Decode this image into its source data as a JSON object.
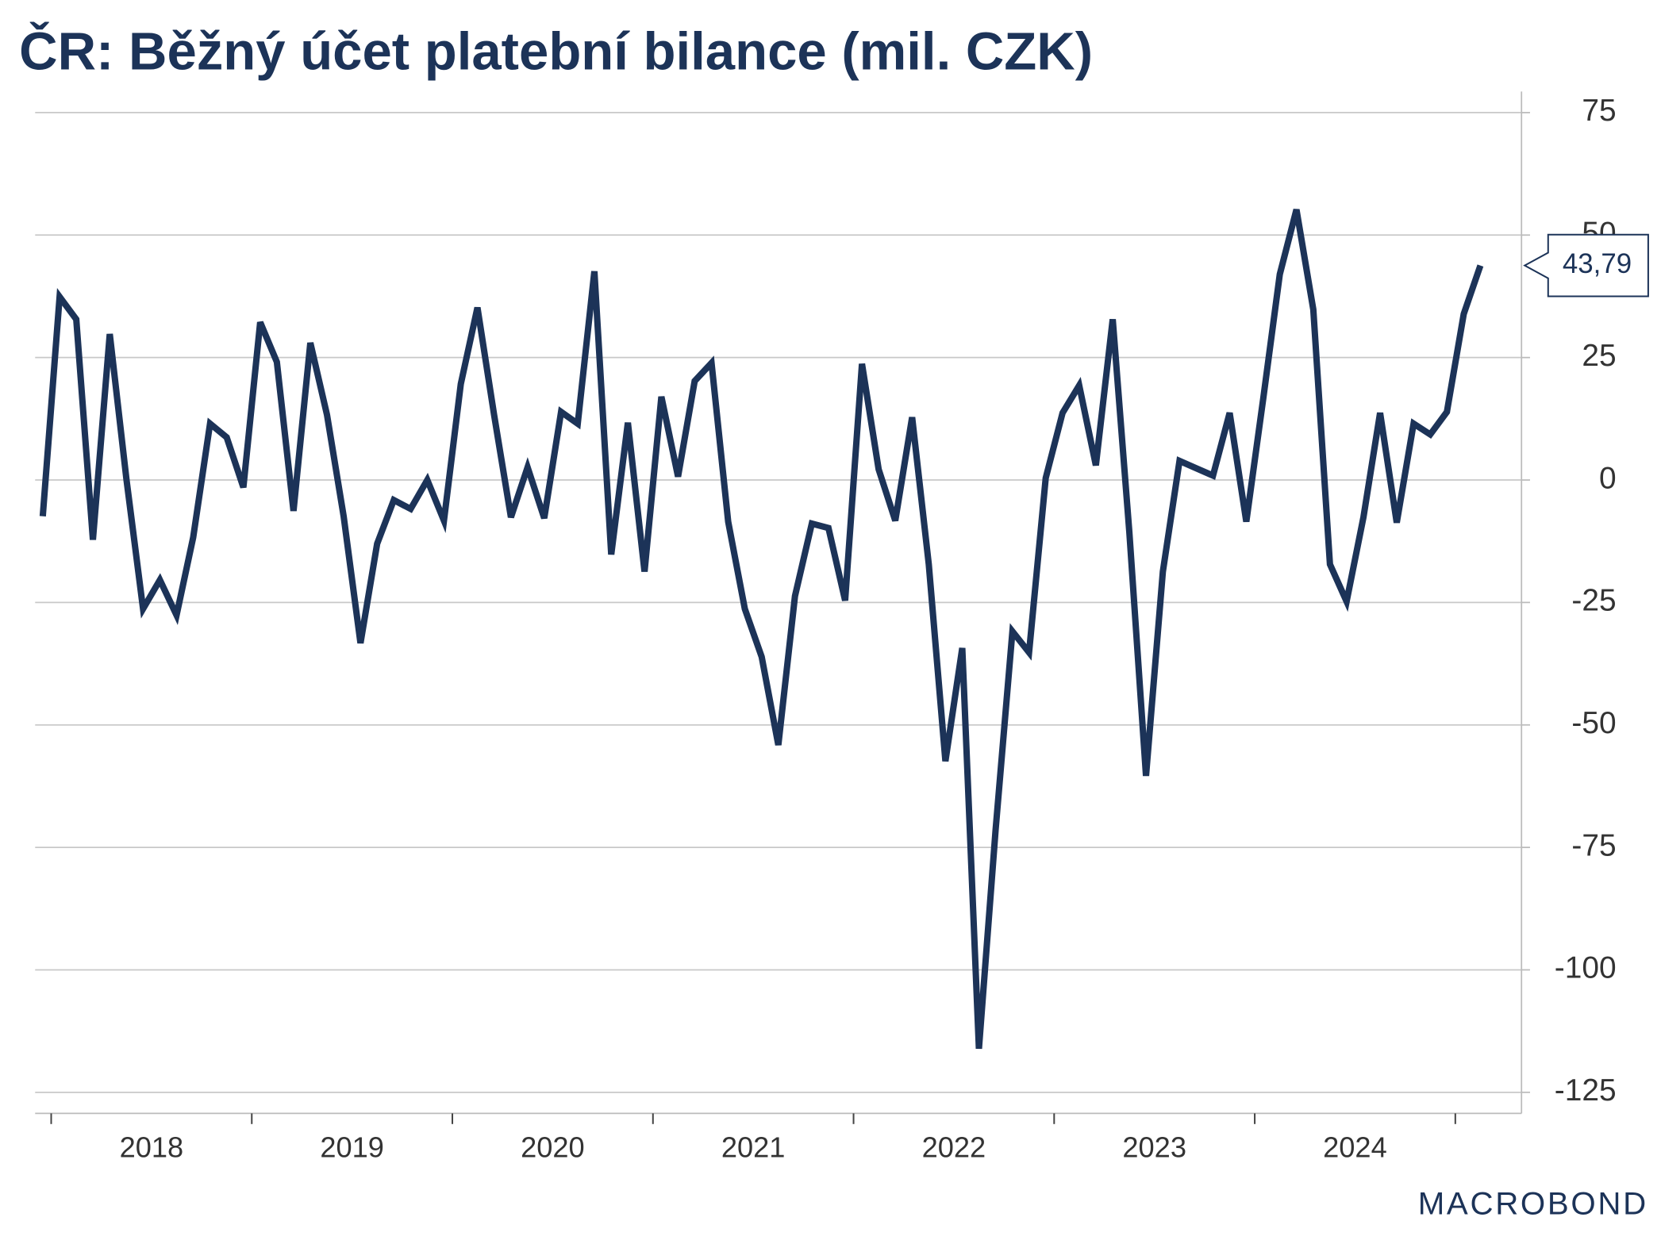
{
  "chart_data": {
    "type": "line",
    "title": "ČR: Běžný účet platební bilance (mil. CZK)",
    "source": "MACROBOND",
    "x": [
      2017.958,
      2018.042,
      2018.125,
      2018.208,
      2018.292,
      2018.375,
      2018.458,
      2018.542,
      2018.625,
      2018.708,
      2018.792,
      2018.875,
      2018.958,
      2019.042,
      2019.125,
      2019.208,
      2019.292,
      2019.375,
      2019.458,
      2019.542,
      2019.625,
      2019.708,
      2019.792,
      2019.875,
      2019.958,
      2020.042,
      2020.125,
      2020.208,
      2020.292,
      2020.375,
      2020.458,
      2020.542,
      2020.625,
      2020.708,
      2020.792,
      2020.875,
      2020.958,
      2021.042,
      2021.125,
      2021.208,
      2021.292,
      2021.375,
      2021.458,
      2021.542,
      2021.625,
      2021.708,
      2021.792,
      2021.875,
      2021.958,
      2022.042,
      2022.125,
      2022.208,
      2022.292,
      2022.375,
      2022.458,
      2022.542,
      2022.625,
      2022.708,
      2022.792,
      2022.875,
      2022.958,
      2023.042,
      2023.125,
      2023.208,
      2023.292,
      2023.375,
      2023.458,
      2023.542,
      2023.625,
      2023.708,
      2023.792,
      2023.875,
      2023.958,
      2024.042,
      2024.125,
      2024.208,
      2024.292,
      2024.375,
      2024.458,
      2024.542,
      2024.625,
      2024.708,
      2024.792,
      2024.875,
      2024.958,
      2025.042,
      2025.125
    ],
    "series": [
      {
        "name": "Běžný účet",
        "color": "#1c3358",
        "values": [
          -7.4,
          37.4,
          32.8,
          -12.2,
          29.8,
          0.2,
          -26.3,
          -20.4,
          -27.6,
          -11.7,
          11.5,
          8.7,
          -1.5,
          32.2,
          24.1,
          -6.3,
          28.0,
          13.3,
          -7.4,
          -33.3,
          -13.0,
          -4.1,
          -5.9,
          0,
          -8.3,
          19.6,
          35.2,
          13.3,
          -7.6,
          2.6,
          -7.8,
          13.9,
          11.5,
          42.6,
          -15.2,
          11.7,
          -18.7,
          17.0,
          0.7,
          20.2,
          23.9,
          -8.5,
          -26.3,
          -36.1,
          -54.1,
          -23.7,
          -8.9,
          -9.8,
          -24.6,
          23.7,
          2.2,
          -8.3,
          12.8,
          -17.2,
          -57.4,
          -34.3,
          -116.1,
          -71.5,
          -30.9,
          -35.2,
          0.4,
          13.7,
          19.3,
          3.0,
          32.8,
          -10.7,
          -60.4,
          -18.7,
          3.9,
          2.4,
          0.9,
          13.7,
          -8.5,
          16.5,
          42.0,
          55.2,
          34.8,
          -17.2,
          -24.8,
          -7.6,
          13.7,
          -8.7,
          11.5,
          9.3,
          13.9,
          33.9,
          43.79
        ],
        "value_labels": [
          null,
          null,
          null,
          null,
          null,
          null,
          null,
          null,
          null,
          null,
          null,
          null,
          null,
          null,
          null,
          null,
          null,
          null,
          null,
          null,
          null,
          null,
          null,
          null,
          null,
          null,
          null,
          null,
          null,
          null,
          null,
          null,
          null,
          null,
          null,
          null,
          null,
          null,
          null,
          null,
          null,
          null,
          null,
          null,
          null,
          null,
          null,
          null,
          null,
          null,
          null,
          null,
          null,
          null,
          null,
          null,
          null,
          null,
          null,
          null,
          null,
          null,
          null,
          null,
          null,
          null,
          null,
          null,
          null,
          null,
          null,
          null,
          null,
          null,
          null,
          null,
          null,
          null,
          null,
          null,
          null,
          null,
          null,
          null,
          null,
          null,
          "43,79"
        ]
      }
    ],
    "xlim": [
      2017.92,
      2025.33
    ],
    "xticks": [
      2018,
      2019,
      2020,
      2021,
      2022,
      2023,
      2024,
      2025
    ],
    "x_labels": [
      {
        "value": 2018.5,
        "label": "2018"
      },
      {
        "value": 2019.5,
        "label": "2019"
      },
      {
        "value": 2020.5,
        "label": "2020"
      },
      {
        "value": 2021.5,
        "label": "2021"
      },
      {
        "value": 2022.5,
        "label": "2022"
      },
      {
        "value": 2023.5,
        "label": "2023"
      },
      {
        "value": 2024.5,
        "label": "2024"
      }
    ],
    "ylim": [
      -129.3,
      79.3
    ],
    "yticks": [
      75,
      50,
      25,
      0,
      -25,
      -50,
      -75,
      -100,
      -125
    ],
    "grid": true
  }
}
